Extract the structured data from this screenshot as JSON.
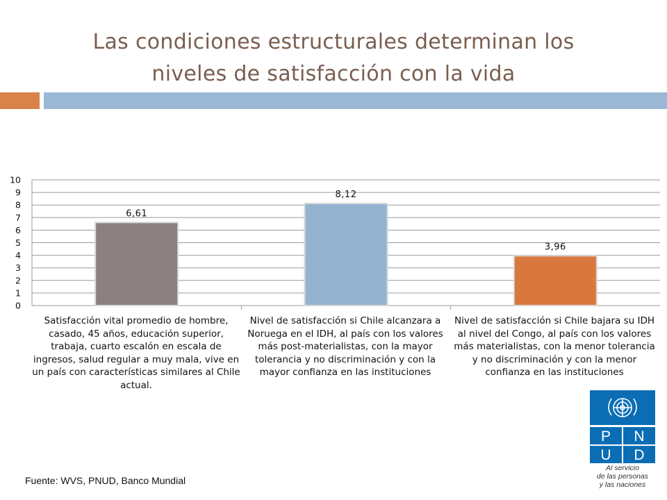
{
  "slide": {
    "title_line1": "Las condiciones estructurales determinan los",
    "title_line2": "niveles de satisfacción con la vida",
    "source": "Fuente: WVS, PNUD, Banco Mundial"
  },
  "logo": {
    "letters": [
      "P",
      "N",
      "U",
      "D"
    ],
    "subtitle_line1": "Al servicio",
    "subtitle_line2": "de las personas",
    "subtitle_line3": "y las naciones",
    "color": "#0b6eb5"
  },
  "chart_data": {
    "type": "bar",
    "title": "",
    "xlabel": "",
    "ylabel": "",
    "ylim": [
      0,
      10
    ],
    "yticks": [
      0,
      1,
      2,
      3,
      4,
      5,
      6,
      7,
      8,
      9,
      10
    ],
    "grid": true,
    "categories": [
      "Satisfacción vital promedio de hombre, casado, 45 años, educación superior, trabaja, cuarto escalón en escala de ingresos, salud regular a muy mala, vive en un país con características similares al Chile actual.",
      "Nivel de satisfacción si Chile alcanzara a Noruega en el IDH, al país con los valores más post-materialistas, con la mayor tolerancia y no discriminación y con la mayor confianza en las instituciones",
      "Nivel de satisfacción si Chile bajara su IDH al nivel del Congo, al país con los valores más materialistas, con la menor tolerancia y no discriminación y con la menor confianza en las instituciones"
    ],
    "values": [
      6.61,
      8.12,
      3.96
    ],
    "value_labels": [
      "6,61",
      "8,12",
      "3,96"
    ],
    "colors": [
      "#8c8180",
      "#94b3d1",
      "#d9783e"
    ]
  }
}
